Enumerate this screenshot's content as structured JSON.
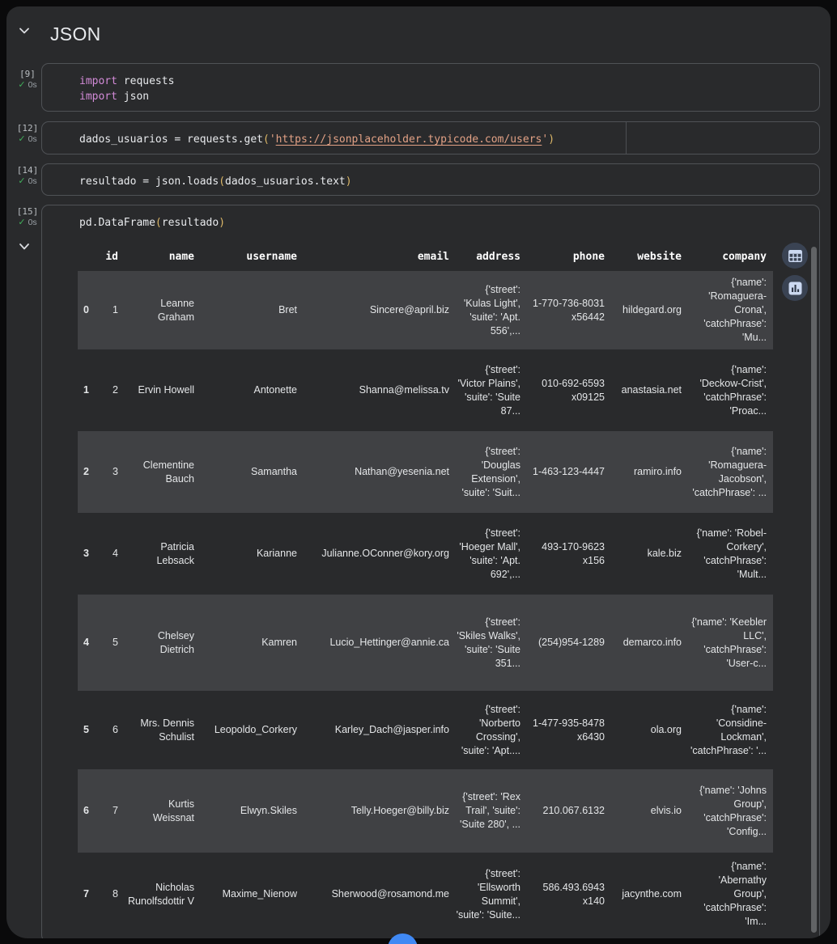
{
  "section": {
    "title": "JSON"
  },
  "cells": [
    {
      "exec_count": "[9]",
      "status_time": "0s",
      "lines": [
        [
          {
            "t": "kw",
            "v": "import"
          },
          {
            "t": "plain",
            "v": " requests"
          }
        ],
        [
          {
            "t": "kw",
            "v": "import"
          },
          {
            "t": "plain",
            "v": " json"
          }
        ]
      ]
    },
    {
      "exec_count": "[12]",
      "status_time": "0s",
      "lines": [
        [
          {
            "t": "plain",
            "v": "dados_usuarios = requests.get"
          },
          {
            "t": "paren",
            "v": "("
          },
          {
            "t": "str",
            "v": "'"
          },
          {
            "t": "strlink",
            "v": "https://jsonplaceholder.typicode.com/users"
          },
          {
            "t": "str",
            "v": "'"
          },
          {
            "t": "paren",
            "v": ")"
          }
        ]
      ]
    },
    {
      "exec_count": "[14]",
      "status_time": "0s",
      "lines": [
        [
          {
            "t": "plain",
            "v": "resultado = json.loads"
          },
          {
            "t": "paren",
            "v": "("
          },
          {
            "t": "plain",
            "v": "dados_usuarios.text"
          },
          {
            "t": "paren",
            "v": ")"
          }
        ]
      ]
    },
    {
      "exec_count": "[15]",
      "status_time": "0s",
      "lines": [
        [
          {
            "t": "plain",
            "v": "pd.DataFrame"
          },
          {
            "t": "paren",
            "v": "("
          },
          {
            "t": "plain",
            "v": "resultado"
          },
          {
            "t": "paren",
            "v": ")"
          }
        ]
      ]
    }
  ],
  "dataframe": {
    "columns": [
      "id",
      "name",
      "username",
      "email",
      "address",
      "phone",
      "website",
      "company"
    ],
    "rows": [
      [
        "0",
        "1",
        "Leanne Graham",
        "Bret",
        "Sincere@april.biz",
        "{'street': 'Kulas Light', 'suite': 'Apt. 556',...",
        "1-770-736-8031 x56442",
        "hildegard.org",
        "{'name': 'Romaguera-Crona', 'catchPhrase': 'Mu..."
      ],
      [
        "1",
        "2",
        "Ervin Howell",
        "Antonette",
        "Shanna@melissa.tv",
        "{'street': 'Victor Plains', 'suite': 'Suite 87...",
        "010-692-6593 x09125",
        "anastasia.net",
        "{'name': 'Deckow-Crist', 'catchPhrase': 'Proac..."
      ],
      [
        "2",
        "3",
        "Clementine Bauch",
        "Samantha",
        "Nathan@yesenia.net",
        "{'street': 'Douglas Extension', 'suite': 'Suit...",
        "1-463-123-4447",
        "ramiro.info",
        "{'name': 'Romaguera-Jacobson', 'catchPhrase': ..."
      ],
      [
        "3",
        "4",
        "Patricia Lebsack",
        "Karianne",
        "Julianne.OConner@kory.org",
        "{'street': 'Hoeger Mall', 'suite': 'Apt. 692',...",
        "493-170-9623 x156",
        "kale.biz",
        "{'name': 'Robel-Corkery', 'catchPhrase': 'Mult..."
      ],
      [
        "4",
        "5",
        "Chelsey Dietrich",
        "Kamren",
        "Lucio_Hettinger@annie.ca",
        "{'street': 'Skiles Walks', 'suite': 'Suite 351...",
        "(254)954-1289",
        "demarco.info",
        "{'name': 'Keebler LLC', 'catchPhrase': 'User-c..."
      ],
      [
        "5",
        "6",
        "Mrs. Dennis Schulist",
        "Leopoldo_Corkery",
        "Karley_Dach@jasper.info",
        "{'street': 'Norberto Crossing', 'suite': 'Apt....",
        "1-477-935-8478 x6430",
        "ola.org",
        "{'name': 'Considine-Lockman', 'catchPhrase': '..."
      ],
      [
        "6",
        "7",
        "Kurtis Weissnat",
        "Elwyn.Skiles",
        "Telly.Hoeger@billy.biz",
        "{'street': 'Rex Trail', 'suite': 'Suite 280', ...",
        "210.067.6132",
        "elvis.io",
        "{'name': 'Johns Group', 'catchPhrase': 'Config..."
      ],
      [
        "7",
        "8",
        "Nicholas Runolfsdottir V",
        "Maxime_Nienow",
        "Sherwood@rosamond.me",
        "{'street': 'Ellsworth Summit', 'suite': 'Suite...",
        "586.493.6943 x140",
        "jacynthe.com",
        "{'name': 'Abernathy Group', 'catchPhrase': 'Im..."
      ]
    ]
  },
  "output_toolbar": {
    "icons": [
      "interactive-table-icon",
      "suggest-charts-icon"
    ]
  },
  "colors": {
    "keyword": "#d38bd8",
    "string": "#e2a185",
    "paren": "#ddb868",
    "success_check": "#41b05c",
    "row_stripe": "#404144",
    "icon_circle": "#3a4353",
    "fab_blue": "#4089f4"
  }
}
